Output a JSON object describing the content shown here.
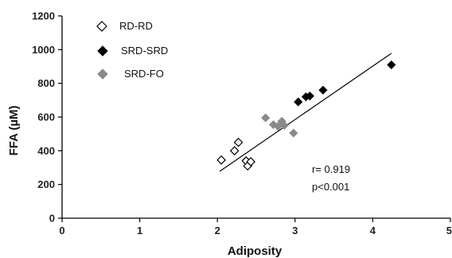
{
  "chart_data": {
    "type": "scatter",
    "xlabel": "Adiposity",
    "ylabel": "FFA (µM)",
    "xlim": [
      0,
      5
    ],
    "ylim": [
      0,
      1200
    ],
    "xticks": [
      "0",
      "1",
      "2",
      "3",
      "4",
      "5"
    ],
    "yticks": [
      "0",
      "200",
      "400",
      "600",
      "800",
      "1000",
      "1200"
    ],
    "grid": false,
    "legend_position": "top-left",
    "series": [
      {
        "name": "RD-RD",
        "marker": "open-diamond",
        "color": "#000000",
        "points": [
          {
            "x": 2.05,
            "y": 345
          },
          {
            "x": 2.22,
            "y": 400
          },
          {
            "x": 2.27,
            "y": 450
          },
          {
            "x": 2.37,
            "y": 340
          },
          {
            "x": 2.39,
            "y": 310
          },
          {
            "x": 2.43,
            "y": 335
          }
        ]
      },
      {
        "name": "SRD-SRD",
        "marker": "filled-diamond",
        "color": "#000000",
        "points": [
          {
            "x": 3.04,
            "y": 690
          },
          {
            "x": 3.14,
            "y": 720
          },
          {
            "x": 3.19,
            "y": 725
          },
          {
            "x": 3.36,
            "y": 760
          },
          {
            "x": 4.24,
            "y": 910
          }
        ]
      },
      {
        "name": "SRD-FO",
        "marker": "filled-diamond",
        "color": "#8a8a8a",
        "points": [
          {
            "x": 2.62,
            "y": 595
          },
          {
            "x": 2.72,
            "y": 555
          },
          {
            "x": 2.78,
            "y": 545
          },
          {
            "x": 2.83,
            "y": 575
          },
          {
            "x": 2.86,
            "y": 550
          },
          {
            "x": 2.98,
            "y": 505
          }
        ]
      }
    ],
    "trendline": {
      "x": [
        2.03,
        4.24
      ],
      "y": [
        278,
        978
      ]
    },
    "annotations": [
      "r= 0.919",
      "p<0.001"
    ]
  }
}
